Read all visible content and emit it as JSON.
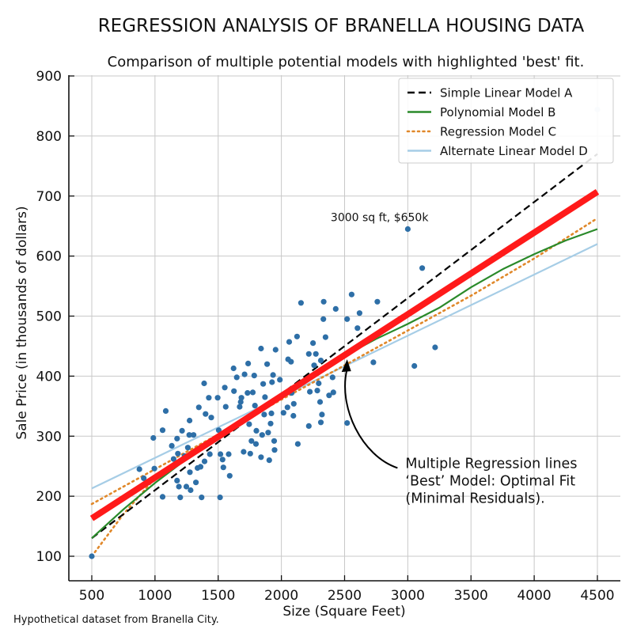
{
  "chart_data": {
    "type": "scatter",
    "title": "REGRESSION ANALYSIS OF BRANELLA HOUSING DATA",
    "subtitle": "Comparison of multiple potential models with highlighted 'best' fit.",
    "xlabel": "Size (Square Feet)",
    "ylabel": "Sale Price (in thousands of dollars)",
    "xlim": [
      330,
      4730
    ],
    "ylim": [
      55,
      900
    ],
    "x_ticks": [
      500,
      1000,
      1500,
      2000,
      2500,
      3000,
      3500,
      4000,
      4500
    ],
    "y_ticks": [
      100,
      200,
      300,
      400,
      500,
      600,
      700,
      800,
      900
    ],
    "grid": true,
    "legend_position": "top-right",
    "footnote": "Hypothetical dataset from Branella City.",
    "scatter": {
      "name": "Observed sales",
      "color": "#2e6fa7",
      "points": [
        [
          500,
          100
        ],
        [
          877,
          245
        ],
        [
          911,
          230
        ],
        [
          987,
          297
        ],
        [
          995,
          246
        ],
        [
          1060,
          310
        ],
        [
          1085,
          342
        ],
        [
          1060,
          199
        ],
        [
          1133,
          284
        ],
        [
          1175,
          296
        ],
        [
          1181,
          271
        ],
        [
          1147,
          262
        ],
        [
          1214,
          309
        ],
        [
          1200,
          198
        ],
        [
          1274,
          326
        ],
        [
          1271,
          302
        ],
        [
          1305,
          302
        ],
        [
          1260,
          281
        ],
        [
          1234,
          267
        ],
        [
          1175,
          226
        ],
        [
          1189,
          216
        ],
        [
          1248,
          216
        ],
        [
          1282,
          210
        ],
        [
          1324,
          223
        ],
        [
          1276,
          240
        ],
        [
          1336,
          247
        ],
        [
          1361,
          249
        ],
        [
          1347,
          348
        ],
        [
          1389,
          388
        ],
        [
          1400,
          337
        ],
        [
          1426,
          364
        ],
        [
          1445,
          331
        ],
        [
          1369,
          198
        ],
        [
          1392,
          258
        ],
        [
          1434,
          270
        ],
        [
          1496,
          364
        ],
        [
          1504,
          310
        ],
        [
          1518,
          270
        ],
        [
          1515,
          198
        ],
        [
          1535,
          261
        ],
        [
          1541,
          248
        ],
        [
          1552,
          381
        ],
        [
          1560,
          349
        ],
        [
          1583,
          270
        ],
        [
          1591,
          234
        ],
        [
          1622,
          413
        ],
        [
          1625,
          375
        ],
        [
          1647,
          398
        ],
        [
          1670,
          349
        ],
        [
          1678,
          357
        ],
        [
          1684,
          364
        ],
        [
          1701,
          274
        ],
        [
          1709,
          403
        ],
        [
          1732,
          372
        ],
        [
          1737,
          421
        ],
        [
          1745,
          320
        ],
        [
          1754,
          271
        ],
        [
          1763,
          292
        ],
        [
          1774,
          373
        ],
        [
          1785,
          401
        ],
        [
          1791,
          351
        ],
        [
          1799,
          287
        ],
        [
          1802,
          309
        ],
        [
          1839,
          265
        ],
        [
          1839,
          446
        ],
        [
          1848,
          302
        ],
        [
          1856,
          387
        ],
        [
          1864,
          336
        ],
        [
          1870,
          365
        ],
        [
          1887,
          420
        ],
        [
          1895,
          306
        ],
        [
          1904,
          260
        ],
        [
          1915,
          321
        ],
        [
          1921,
          338
        ],
        [
          1926,
          390
        ],
        [
          1934,
          402
        ],
        [
          1943,
          292
        ],
        [
          1946,
          277
        ],
        [
          1954,
          444
        ],
        [
          1988,
          394
        ],
        [
          2017,
          339
        ],
        [
          2048,
          348
        ],
        [
          2062,
          457
        ],
        [
          2053,
          428
        ],
        [
          2076,
          424
        ],
        [
          2081,
          372
        ],
        [
          2098,
          354
        ],
        [
          2095,
          334
        ],
        [
          2124,
          466
        ],
        [
          2130,
          287
        ],
        [
          2155,
          522
        ],
        [
          2217,
          437
        ],
        [
          2217,
          317
        ],
        [
          2225,
          374
        ],
        [
          2250,
          455
        ],
        [
          2259,
          418
        ],
        [
          2273,
          437
        ],
        [
          2284,
          376
        ],
        [
          2295,
          388
        ],
        [
          2306,
          357
        ],
        [
          2312,
          323
        ],
        [
          2312,
          426
        ],
        [
          2321,
          336
        ],
        [
          2332,
          495
        ],
        [
          2335,
          524
        ],
        [
          2349,
          465
        ],
        [
          2377,
          368
        ],
        [
          2405,
          398
        ],
        [
          2411,
          373
        ],
        [
          2430,
          512
        ],
        [
          2520,
          495
        ],
        [
          2520,
          322
        ],
        [
          2556,
          536
        ],
        [
          2602,
          480
        ],
        [
          2618,
          505
        ],
        [
          2728,
          423
        ],
        [
          2759,
          524
        ],
        [
          3000,
          645
        ],
        [
          3052,
          417
        ],
        [
          3114,
          580
        ],
        [
          3216,
          448
        ]
      ],
      "faint_points": [
        [
          4500,
          844
        ]
      ],
      "faint_color": "#c9d9ea"
    },
    "series": [
      {
        "name": "Simple Linear Model A",
        "style": "dashed",
        "color": "#000000",
        "x": [
          500,
          4500
        ],
        "y": [
          130,
          770
        ]
      },
      {
        "name": "Polynomial Model B",
        "style": "solid",
        "color": "#2a8a2a",
        "x": [
          500,
          750,
          1000,
          1250,
          1500,
          1750,
          2000,
          2250,
          2500,
          2750,
          3000,
          3250,
          3500,
          3750,
          4000,
          4250,
          4500
        ],
        "y": [
          130,
          178,
          222,
          262,
          300,
          336,
          370,
          403,
          434,
          462,
          487,
          514,
          548,
          578,
          603,
          626,
          645
        ]
      },
      {
        "name": "Regression Model C",
        "style": "dotted",
        "color": "#e0882a",
        "x": [
          500,
          1000,
          1500,
          2000,
          2500,
          3000,
          3500,
          4000,
          4500
        ],
        "y": [
          187,
          245,
          303,
          361,
          418,
          476,
          534,
          596,
          663
        ],
        "extra_branch": {
          "x": [
            500,
            750,
            1000,
            1250,
            1500
          ],
          "y": [
            100,
            170,
            230,
            270,
            303
          ]
        }
      },
      {
        "name": "Alternate Linear Model D",
        "style": "solid",
        "color": "#a6cde6",
        "x": [
          500,
          4500
        ],
        "y": [
          213,
          620
        ]
      },
      {
        "name": "Best Model (highlighted)",
        "style": "solid-thick",
        "color": "#ff1a1a",
        "x": [
          500,
          4500
        ],
        "y": [
          163,
          707
        ],
        "in_legend": false
      }
    ],
    "annotations": [
      {
        "text": "3000 sq ft, $650k",
        "x": 2390,
        "y": 658,
        "type": "label"
      },
      {
        "type": "arrow-callout",
        "lines": [
          "Multiple Regression lines",
          "‘Best’ Model: Optimal Fit",
          "(Minimal Residuals)."
        ],
        "text_at": [
          3000,
          255
        ],
        "arrow_to": [
          2520,
          428
        ]
      }
    ]
  }
}
